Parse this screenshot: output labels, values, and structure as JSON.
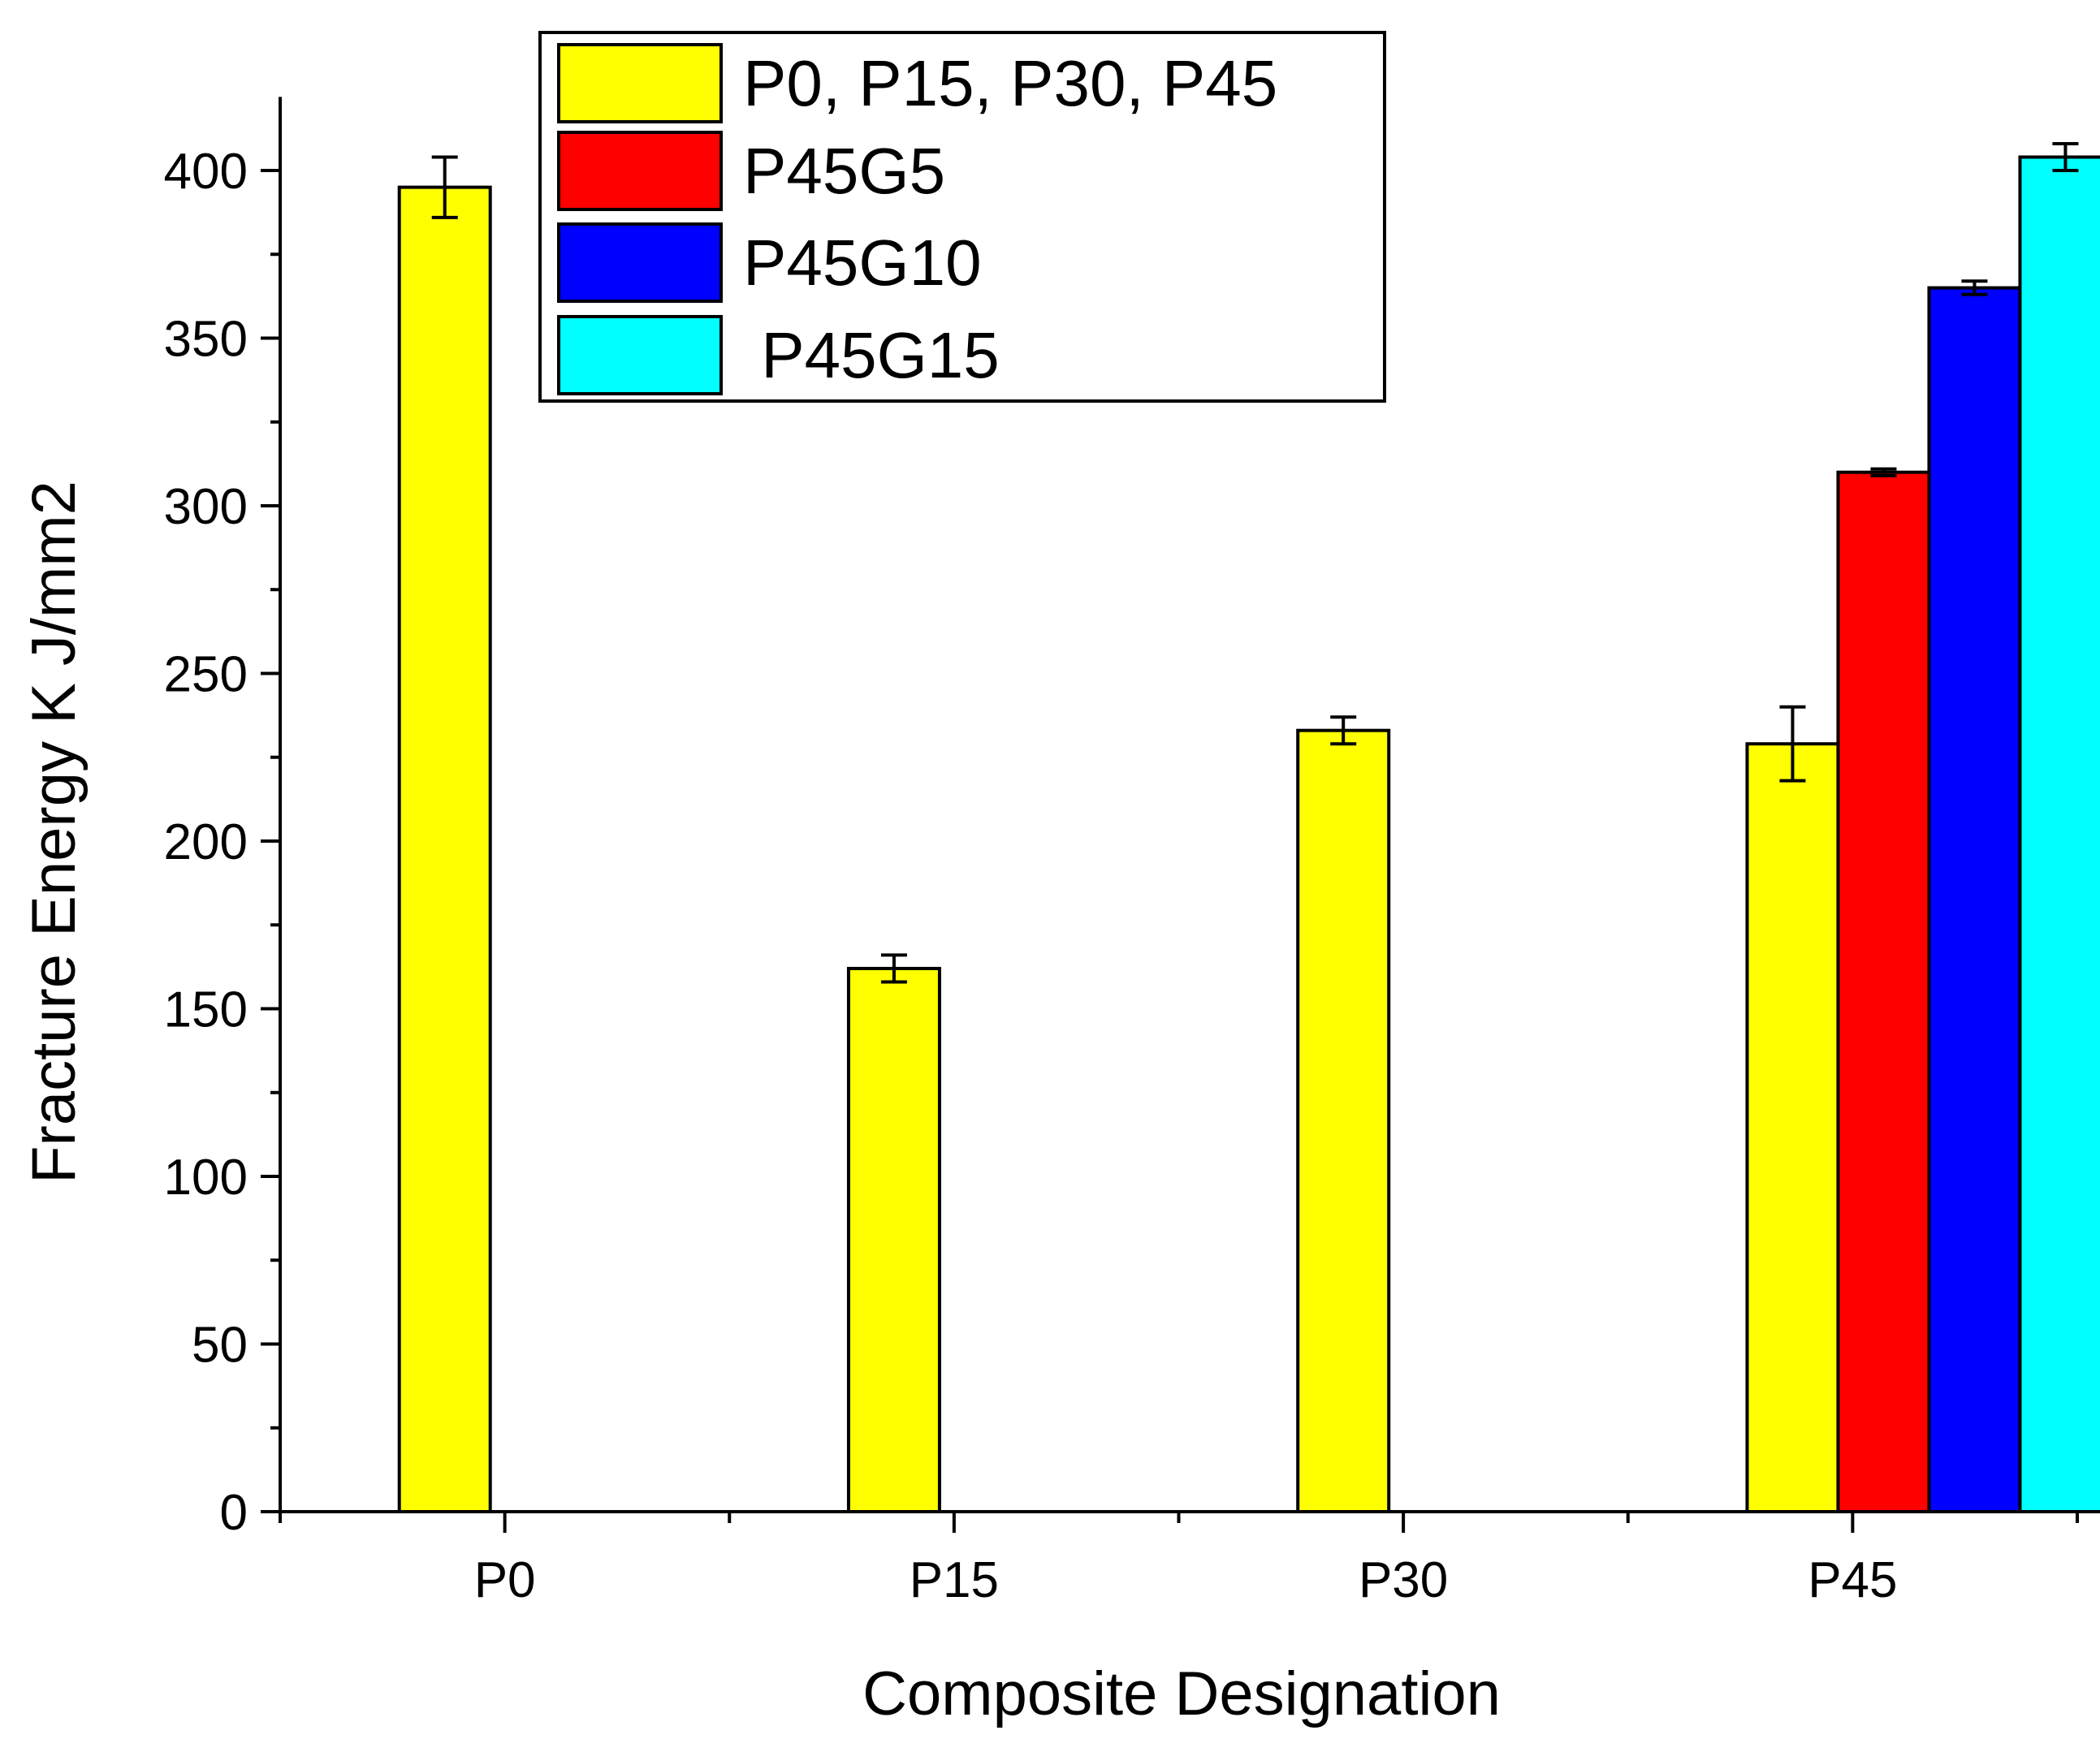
{
  "chart_data": {
    "type": "bar",
    "title": "",
    "xlabel": "Composite Designation",
    "ylabel": "Fracture Energy K J/mm2",
    "ylim": [
      0,
      420
    ],
    "yticks": [
      0,
      50,
      100,
      150,
      200,
      250,
      300,
      350,
      400
    ],
    "ytick_labels": [
      "0",
      "50",
      "100",
      "150",
      "200",
      "250",
      "300",
      "350",
      "400"
    ],
    "categories": [
      "P0",
      "P15",
      "P30",
      "P45"
    ],
    "bars": [
      {
        "category": "P0",
        "series": "P0, P15, P30, P45",
        "value": 395,
        "error": 9
      },
      {
        "category": "P15",
        "series": "P0, P15, P30, P45",
        "value": 162,
        "error": 4
      },
      {
        "category": "P30",
        "series": "P0, P15, P30, P45",
        "value": 233,
        "error": 4
      },
      {
        "category": "P45",
        "series": "P0, P15, P30, P45",
        "value": 229,
        "error": 11
      },
      {
        "category": "P45",
        "series": "P45G5",
        "value": 310,
        "error": 1
      },
      {
        "category": "P45",
        "series": "P45G10",
        "value": 365,
        "error": 2
      },
      {
        "category": "P45",
        "series": "P45G15",
        "value": 404,
        "error": 4
      }
    ],
    "series": [
      {
        "name": "P0, P15, P30, P45",
        "color": "#ffff00"
      },
      {
        "name": "P45G5",
        "color": "#ff0000"
      },
      {
        "name": "P45G10",
        "color": "#0000ff"
      },
      {
        "name": "P45G15",
        "color": "#00ffff"
      }
    ],
    "legend": {
      "position": "top-center",
      "entries": [
        "P0, P15, P30, P45",
        "P45G5",
        "P45G10",
        " P45G15"
      ]
    },
    "grid": false
  }
}
